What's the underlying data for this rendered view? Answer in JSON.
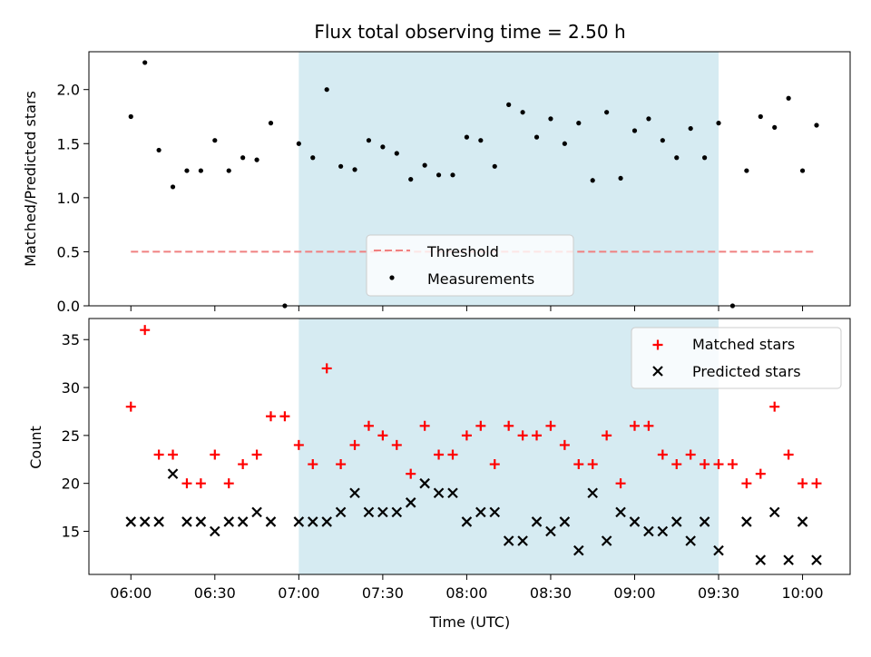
{
  "title": "Flux total observing time = 2.50 h",
  "colors": {
    "shade": "#add8e6",
    "threshold": "#f08080",
    "matched": "#ff0000",
    "predicted": "#000000",
    "measurement": "#000000"
  },
  "chart_data": [
    {
      "type": "scatter",
      "panel": "top",
      "ylabel": "Matched/Predicted stars",
      "ylim": [
        0,
        2.35
      ],
      "yticks": [
        "0.0",
        "0.5",
        "1.0",
        "1.5",
        "2.0"
      ],
      "yticks_values": [
        0,
        0.5,
        1.0,
        1.5,
        2.0
      ],
      "shaded_interval": [
        "07:00",
        "09:30"
      ],
      "threshold": {
        "name": "Threshold",
        "value": 0.5,
        "x_start": "06:00",
        "x_end": "10:05"
      },
      "legend": {
        "placement": "lower-center",
        "entries": [
          "Threshold",
          "Measurements"
        ]
      },
      "series": [
        {
          "name": "Measurements",
          "x": [
            "06:00",
            "06:05",
            "06:10",
            "06:15",
            "06:20",
            "06:25",
            "06:30",
            "06:35",
            "06:40",
            "06:45",
            "06:50",
            "06:55",
            "07:00",
            "07:05",
            "07:10",
            "07:15",
            "07:20",
            "07:25",
            "07:30",
            "07:35",
            "07:40",
            "07:45",
            "07:50",
            "07:55",
            "08:00",
            "08:05",
            "08:10",
            "08:15",
            "08:20",
            "08:25",
            "08:30",
            "08:35",
            "08:40",
            "08:45",
            "08:50",
            "08:55",
            "09:00",
            "09:05",
            "09:10",
            "09:15",
            "09:20",
            "09:25",
            "09:30",
            "09:35",
            "09:40",
            "09:45",
            "09:50",
            "09:55",
            "10:00",
            "10:05"
          ],
          "y": [
            1.75,
            2.25,
            1.44,
            1.1,
            1.25,
            1.25,
            1.53,
            1.25,
            1.37,
            1.35,
            1.69,
            0.0,
            1.5,
            1.37,
            2.0,
            1.29,
            1.26,
            1.53,
            1.47,
            1.41,
            1.17,
            1.3,
            1.21,
            1.21,
            1.56,
            1.53,
            1.29,
            1.86,
            1.79,
            1.56,
            1.73,
            1.5,
            1.69,
            1.16,
            1.79,
            1.18,
            1.62,
            1.73,
            1.53,
            1.37,
            1.64,
            1.37,
            1.69,
            0.0,
            1.25,
            1.75,
            1.65,
            1.92,
            1.25,
            1.67
          ]
        }
      ]
    },
    {
      "type": "scatter",
      "panel": "bottom",
      "xlabel": "Time (UTC)",
      "ylabel": "Count",
      "ylim": [
        10.5,
        37.2
      ],
      "yticks": [
        "15",
        "20",
        "25",
        "30",
        "35"
      ],
      "yticks_values": [
        15,
        20,
        25,
        30,
        35
      ],
      "xticks": [
        "06:00",
        "06:30",
        "07:00",
        "07:30",
        "08:00",
        "08:30",
        "09:00",
        "09:30",
        "10:00"
      ],
      "xlim": [
        "05:45",
        "10:17"
      ],
      "shaded_interval": [
        "07:00",
        "09:30"
      ],
      "legend": {
        "placement": "top-right",
        "entries": [
          "Matched stars",
          "Predicted stars"
        ]
      },
      "series": [
        {
          "name": "Matched stars",
          "x": [
            "06:00",
            "06:05",
            "06:10",
            "06:15",
            "06:20",
            "06:25",
            "06:30",
            "06:35",
            "06:40",
            "06:45",
            "06:50",
            "06:55",
            "07:00",
            "07:05",
            "07:10",
            "07:15",
            "07:20",
            "07:25",
            "07:30",
            "07:35",
            "07:40",
            "07:45",
            "07:50",
            "07:55",
            "08:00",
            "08:05",
            "08:10",
            "08:15",
            "08:20",
            "08:25",
            "08:30",
            "08:35",
            "08:40",
            "08:45",
            "08:50",
            "08:55",
            "09:00",
            "09:05",
            "09:10",
            "09:15",
            "09:20",
            "09:25",
            "09:30",
            "09:35",
            "09:40",
            "09:45",
            "09:50",
            "09:55",
            "10:00",
            "10:05"
          ],
          "y": [
            28,
            36,
            23,
            23,
            20,
            20,
            23,
            20,
            22,
            23,
            27,
            27,
            24,
            22,
            32,
            22,
            24,
            26,
            25,
            24,
            21,
            26,
            23,
            23,
            25,
            26,
            22,
            26,
            25,
            25,
            26,
            24,
            22,
            22,
            25,
            20,
            26,
            26,
            23,
            22,
            23,
            22,
            22,
            22,
            20,
            21,
            28,
            23,
            20,
            20
          ]
        },
        {
          "name": "Predicted stars",
          "x": [
            "06:00",
            "06:05",
            "06:10",
            "06:15",
            "06:20",
            "06:25",
            "06:30",
            "06:35",
            "06:40",
            "06:45",
            "06:50",
            "07:00",
            "07:05",
            "07:10",
            "07:15",
            "07:20",
            "07:25",
            "07:30",
            "07:35",
            "07:40",
            "07:45",
            "07:50",
            "07:55",
            "08:00",
            "08:05",
            "08:10",
            "08:15",
            "08:20",
            "08:25",
            "08:30",
            "08:35",
            "08:40",
            "08:45",
            "08:50",
            "08:55",
            "09:00",
            "09:05",
            "09:10",
            "09:15",
            "09:20",
            "09:25",
            "09:30",
            "09:40",
            "09:45",
            "09:50",
            "09:55",
            "10:00",
            "10:05"
          ],
          "y": [
            16,
            16,
            16,
            21,
            16,
            16,
            15,
            16,
            16,
            17,
            16,
            16,
            16,
            16,
            17,
            19,
            17,
            17,
            17,
            18,
            20,
            19,
            19,
            16,
            17,
            17,
            14,
            14,
            16,
            15,
            16,
            13,
            19,
            14,
            17,
            16,
            15,
            15,
            16,
            14,
            16,
            13,
            16,
            12,
            17,
            12,
            16,
            12
          ]
        }
      ]
    }
  ]
}
